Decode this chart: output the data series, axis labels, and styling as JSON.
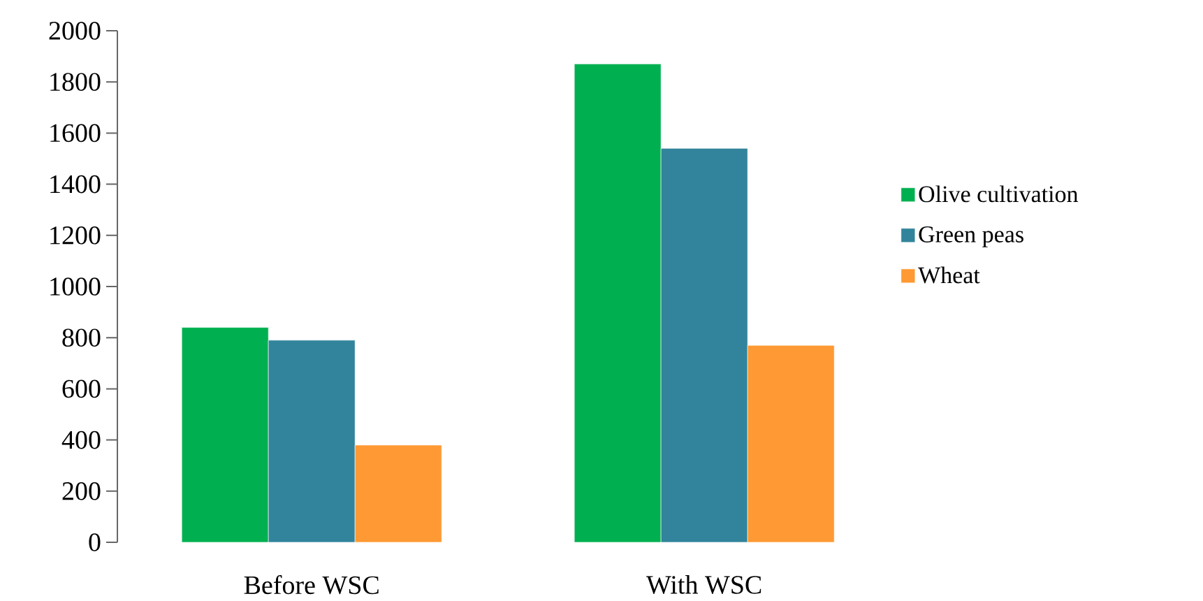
{
  "chart_data": {
    "type": "bar",
    "categories": [
      "Before WSC",
      "With  WSC"
    ],
    "series": [
      {
        "name": "Olive cultivation",
        "color": "#00b050",
        "values": [
          840,
          1870
        ]
      },
      {
        "name": "Green peas",
        "color": "#31849b",
        "values": [
          790,
          1540
        ]
      },
      {
        "name": "Wheat",
        "color": "#ff9933",
        "values": [
          380,
          770
        ]
      }
    ],
    "ylim": [
      0,
      2000
    ],
    "yticks": [
      0,
      200,
      400,
      600,
      800,
      1000,
      1200,
      1400,
      1600,
      1800,
      2000
    ],
    "grid": false,
    "legend": "right"
  }
}
